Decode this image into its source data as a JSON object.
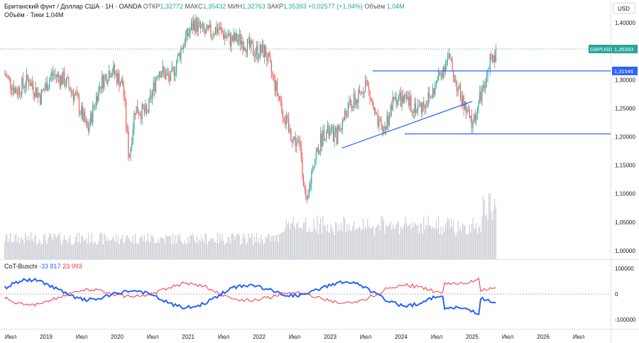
{
  "header": {
    "instrument": "Британский фунт / Доллар США · 1Н · OANDA",
    "ohlc": [
      {
        "label": "ОТКР",
        "value": "1,32772"
      },
      {
        "label": "МАКС",
        "value": "1,35432"
      },
      {
        "label": "МИН",
        "value": "1,32763"
      },
      {
        "label": "ЗАКР",
        "value": "1,35393"
      }
    ],
    "change": "+0,02577 (+1,94%)",
    "volume_label": "Объём",
    "volume_value": "1,04M",
    "volume_ticks_label": "Объём · Тики",
    "volume_ticks_value": "1,04M",
    "currency": "USD"
  },
  "indicator": {
    "name": "CoT-Buschi",
    "value_blue": "-33 817",
    "value_red": "23 993"
  },
  "price_labels": {
    "ticker": "GBPUSD",
    "last": "1,35393",
    "level": "1,31546"
  },
  "colors": {
    "up": "#26a69a",
    "down": "#ef5350",
    "line": "#2962ff",
    "cot_blue": "#2962ff",
    "cot_red": "#f23645"
  },
  "chart_data": [
    {
      "type": "candlestick",
      "title": "Британский фунт / Доллар США · 1Н · OANDA",
      "ylim": [
        0.985,
        1.44
      ],
      "y_ticks": [
        "1,40000",
        "1,35000",
        "1,30000",
        "1,25000",
        "1,20000",
        "1,15000",
        "1,10000",
        "1,05000",
        "1,00000"
      ],
      "x_ticks": [
        "Июл",
        "2019",
        "Июл",
        "2020",
        "Июл",
        "2021",
        "Июл",
        "2022",
        "Июл",
        "2023",
        "Июл",
        "2024",
        "Июл",
        "2025",
        "Июл",
        "2026",
        "Июл"
      ],
      "close_path": [
        [
          "2018-06",
          1.31
        ],
        [
          "2018-08",
          1.28
        ],
        [
          "2018-10",
          1.3
        ],
        [
          "2018-12",
          1.27
        ],
        [
          "2019-02",
          1.31
        ],
        [
          "2019-04",
          1.3
        ],
        [
          "2019-06",
          1.27
        ],
        [
          "2019-08",
          1.21
        ],
        [
          "2019-10",
          1.29
        ],
        [
          "2019-12",
          1.32
        ],
        [
          "2020-02",
          1.29
        ],
        [
          "2020-03",
          1.16
        ],
        [
          "2020-04",
          1.25
        ],
        [
          "2020-06",
          1.24
        ],
        [
          "2020-08",
          1.32
        ],
        [
          "2020-10",
          1.3
        ],
        [
          "2020-12",
          1.36
        ],
        [
          "2021-02",
          1.4
        ],
        [
          "2021-04",
          1.38
        ],
        [
          "2021-06",
          1.39
        ],
        [
          "2021-08",
          1.37
        ],
        [
          "2021-10",
          1.37
        ],
        [
          "2021-12",
          1.35
        ],
        [
          "2022-02",
          1.35
        ],
        [
          "2022-04",
          1.28
        ],
        [
          "2022-06",
          1.21
        ],
        [
          "2022-08",
          1.18
        ],
        [
          "2022-09",
          1.07
        ],
        [
          "2022-10",
          1.15
        ],
        [
          "2022-12",
          1.21
        ],
        [
          "2023-02",
          1.2
        ],
        [
          "2023-04",
          1.25
        ],
        [
          "2023-06",
          1.27
        ],
        [
          "2023-07",
          1.3
        ],
        [
          "2023-09",
          1.22
        ],
        [
          "2023-10",
          1.21
        ],
        [
          "2023-12",
          1.27
        ],
        [
          "2024-02",
          1.26
        ],
        [
          "2024-04",
          1.25
        ],
        [
          "2024-06",
          1.27
        ],
        [
          "2024-08",
          1.32
        ],
        [
          "2024-09",
          1.34
        ],
        [
          "2024-11",
          1.27
        ],
        [
          "2025-01",
          1.22
        ],
        [
          "2025-03",
          1.29
        ],
        [
          "2025-04",
          1.33
        ],
        [
          "2025-05",
          1.35
        ]
      ],
      "volume": "1,04M",
      "annotations": [
        {
          "label": "horizontal-line-upper",
          "price": 1.31546
        },
        {
          "label": "horizontal-line-lower",
          "price": 1.205
        },
        {
          "label": "trendline",
          "from": [
            "2023-03",
            1.18
          ],
          "to": [
            "2025-01",
            1.262
          ]
        },
        {
          "label": "last-price-dotted",
          "price": 1.35393
        }
      ]
    },
    {
      "type": "line",
      "title": "CoT-Buschi",
      "y_ticks": [
        "100000",
        "0",
        "-100000"
      ],
      "series": [
        {
          "name": "CoT-Buschi",
          "color": "#2962ff",
          "last": -33817
        },
        {
          "color": "#f23645",
          "last": 23993
        }
      ]
    }
  ]
}
